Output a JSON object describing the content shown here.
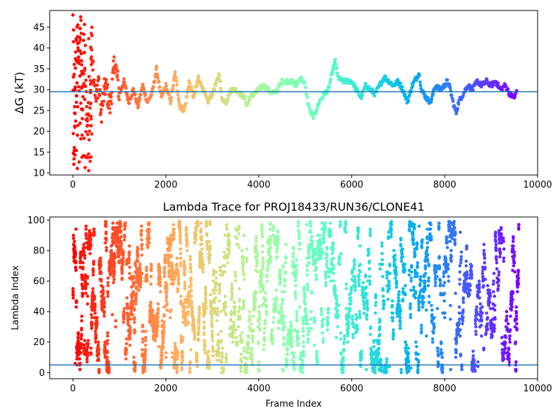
{
  "chart_data": [
    {
      "type": "scatter",
      "title": "",
      "xlabel": "",
      "ylabel": "ΔG (kT)",
      "xlim": [
        -500,
        10000
      ],
      "ylim": [
        9.5,
        49
      ],
      "x_ticks": [
        0,
        2000,
        4000,
        6000,
        8000,
        10000
      ],
      "y_ticks": [
        10,
        15,
        20,
        25,
        30,
        35,
        40,
        45
      ],
      "x_tick_labels": [
        "0",
        "2000",
        "4000",
        "6000",
        "8000",
        "10000"
      ],
      "y_tick_labels": [
        "10",
        "15",
        "20",
        "25",
        "30",
        "35",
        "40",
        "45"
      ],
      "hline": 29.5,
      "hline_color": "#1f77b4",
      "colormap": "rainbow (red at frame 0 → purple at last frame)",
      "grid": false,
      "trace_points": [
        [
          0,
          47
        ],
        [
          10,
          14
        ],
        [
          20,
          11
        ],
        [
          30,
          38
        ],
        [
          40,
          20
        ],
        [
          60,
          40
        ],
        [
          80,
          28
        ],
        [
          100,
          41
        ],
        [
          120,
          33
        ],
        [
          150,
          46
        ],
        [
          180,
          44
        ],
        [
          200,
          25
        ],
        [
          240,
          36
        ],
        [
          280,
          30
        ],
        [
          320,
          18
        ],
        [
          340,
          13
        ],
        [
          380,
          32
        ],
        [
          400,
          47
        ],
        [
          420,
          38
        ],
        [
          500,
          27
        ],
        [
          550,
          33
        ],
        [
          600,
          24
        ],
        [
          700,
          31
        ],
        [
          800,
          26
        ],
        [
          900,
          37
        ],
        [
          1000,
          29
        ],
        [
          1100,
          32
        ],
        [
          1200,
          27
        ],
        [
          1300,
          30
        ],
        [
          1400,
          26
        ],
        [
          1500,
          31
        ],
        [
          1600,
          27
        ],
        [
          1700,
          29
        ],
        [
          1800,
          35
        ],
        [
          1900,
          28
        ],
        [
          2000,
          31
        ],
        [
          2100,
          27
        ],
        [
          2200,
          34
        ],
        [
          2300,
          26
        ],
        [
          2400,
          25
        ],
        [
          2500,
          32
        ],
        [
          2600,
          28
        ],
        [
          2700,
          33
        ],
        [
          2800,
          30
        ],
        [
          2900,
          27
        ],
        [
          3000,
          29
        ],
        [
          3100,
          32
        ],
        [
          3150,
          34
        ],
        [
          3200,
          28
        ],
        [
          3300,
          27
        ],
        [
          3400,
          30
        ],
        [
          3500,
          30
        ],
        [
          3600,
          29
        ],
        [
          3700,
          28
        ],
        [
          3750,
          26
        ],
        [
          3800,
          28
        ],
        [
          3900,
          29
        ],
        [
          4000,
          30
        ],
        [
          4100,
          31
        ],
        [
          4200,
          30
        ],
        [
          4300,
          29
        ],
        [
          4400,
          30
        ],
        [
          4500,
          32
        ],
        [
          4600,
          32
        ],
        [
          4700,
          32
        ],
        [
          4800,
          31
        ],
        [
          4900,
          33
        ],
        [
          5000,
          31
        ],
        [
          5050,
          27
        ],
        [
          5100,
          25
        ],
        [
          5150,
          23.5
        ],
        [
          5200,
          24
        ],
        [
          5300,
          27
        ],
        [
          5400,
          29
        ],
        [
          5500,
          30
        ],
        [
          5600,
          35
        ],
        [
          5650,
          37
        ],
        [
          5700,
          33
        ],
        [
          5800,
          32
        ],
        [
          5900,
          32
        ],
        [
          6000,
          32
        ],
        [
          6100,
          30
        ],
        [
          6200,
          28
        ],
        [
          6300,
          31
        ],
        [
          6400,
          30
        ],
        [
          6500,
          29
        ],
        [
          6600,
          31
        ],
        [
          6700,
          33
        ],
        [
          6800,
          32
        ],
        [
          6900,
          31
        ],
        [
          7000,
          32
        ],
        [
          7100,
          30
        ],
        [
          7200,
          27
        ],
        [
          7300,
          31
        ],
        [
          7400,
          33
        ],
        [
          7450,
          34
        ],
        [
          7500,
          30
        ],
        [
          7600,
          28
        ],
        [
          7700,
          27
        ],
        [
          7800,
          31
        ],
        [
          7900,
          30
        ],
        [
          8000,
          31
        ],
        [
          8050,
          32
        ],
        [
          8100,
          31
        ],
        [
          8200,
          26
        ],
        [
          8250,
          24.5
        ],
        [
          8300,
          27
        ],
        [
          8400,
          29
        ],
        [
          8500,
          31
        ],
        [
          8600,
          30
        ],
        [
          8700,
          32
        ],
        [
          8800,
          31
        ],
        [
          8900,
          32
        ],
        [
          9000,
          31
        ],
        [
          9100,
          32
        ],
        [
          9200,
          30
        ],
        [
          9300,
          31
        ],
        [
          9400,
          29
        ],
        [
          9500,
          28
        ],
        [
          9560,
          30
        ]
      ]
    },
    {
      "type": "scatter",
      "title": "Lambda Trace for PROJ18433/RUN36/CLONE41",
      "xlabel": "Frame Index",
      "ylabel": "Lambda Index",
      "xlim": [
        -500,
        10000
      ],
      "ylim": [
        -4,
        102
      ],
      "x_ticks": [
        0,
        2000,
        4000,
        6000,
        8000,
        10000
      ],
      "y_ticks": [
        0,
        20,
        40,
        60,
        80,
        100
      ],
      "x_tick_labels": [
        "0",
        "2000",
        "4000",
        "6000",
        "8000",
        "10000"
      ],
      "y_tick_labels": [
        "0",
        "20",
        "40",
        "60",
        "80",
        "100"
      ],
      "hline": 5,
      "hline_color": "#1f77b4",
      "colormap": "rainbow (red at frame 0 → purple at last frame)",
      "grid": false,
      "lambda_range": [
        0,
        99
      ],
      "frame_range": [
        0,
        9600
      ]
    }
  ]
}
